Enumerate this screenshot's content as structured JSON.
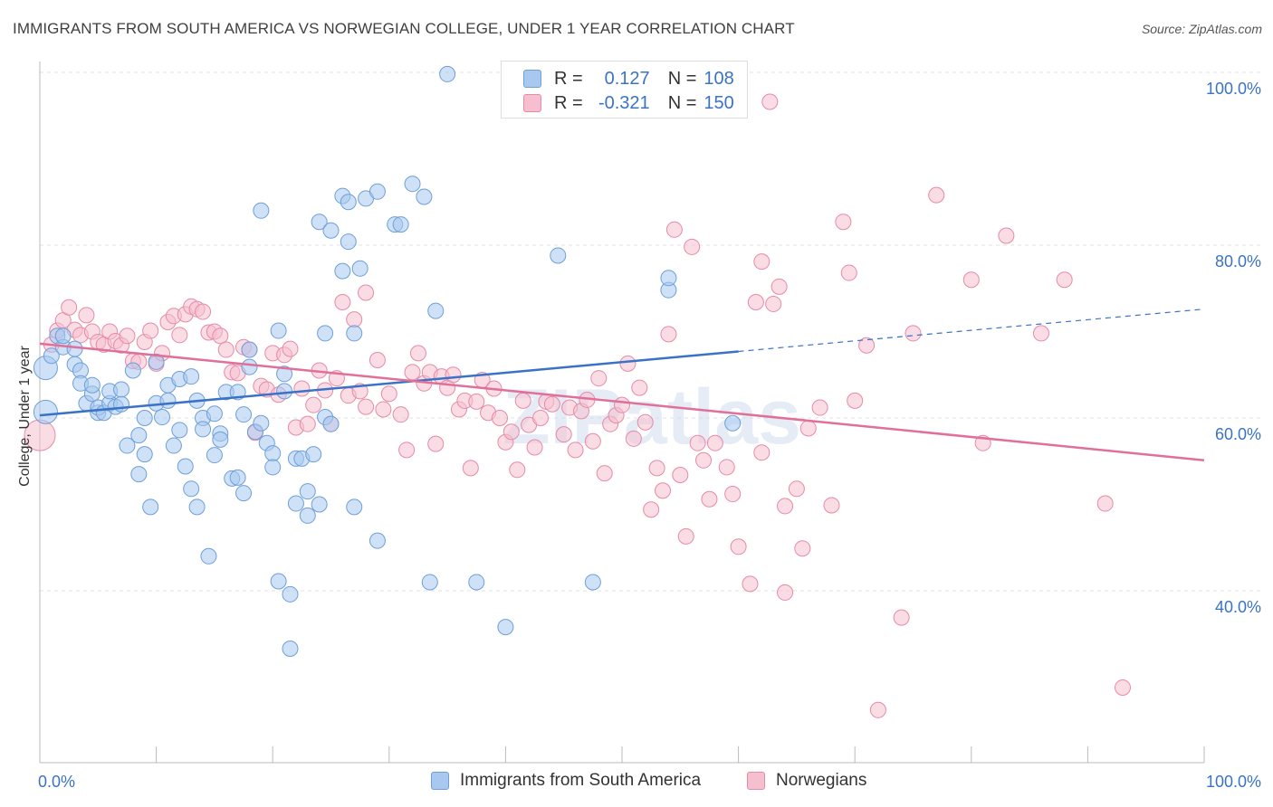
{
  "title": "IMMIGRANTS FROM SOUTH AMERICA VS NORWEGIAN COLLEGE, UNDER 1 YEAR CORRELATION CHART",
  "source": "Source: ZipAtlas.com",
  "watermark": "ZIPatlas",
  "colors": {
    "blue_fill": "#a8c8f0",
    "blue_stroke": "#6e9fd8",
    "blue_line": "#3a73c6",
    "pink_fill": "#f6bfd0",
    "pink_stroke": "#e68aa8",
    "pink_line": "#e0709a",
    "axis_tick_color": "#3a73c6",
    "grid": "#e0e0e0"
  },
  "legend_top": {
    "rows": [
      {
        "r_label": "R =",
        "r_value": "0.127",
        "n_label": "N =",
        "n_value": "108"
      },
      {
        "r_label": "R =",
        "r_value": "-0.321",
        "n_label": "N =",
        "n_value": "150"
      }
    ]
  },
  "legend_bottom": {
    "items": [
      "Immigrants from South America",
      "Norwegians"
    ]
  },
  "chart_data": {
    "type": "scatter",
    "title": "IMMIGRANTS FROM SOUTH AMERICA VS NORWEGIAN COLLEGE, UNDER 1 YEAR CORRELATION CHART",
    "xlabel": "",
    "ylabel": "College, Under 1 year",
    "xlim": [
      0,
      100
    ],
    "ylim": [
      20,
      102
    ],
    "x_tick_labels": [
      "0.0%",
      "100.0%"
    ],
    "y_tick_labels": [
      "100.0%",
      "80.0%",
      "60.0%",
      "40.0%"
    ],
    "y_ticks": [
      100,
      80,
      60,
      40
    ],
    "grid": true,
    "legend_position": "top-center",
    "series": [
      {
        "name": "Immigrants from South America",
        "R": 0.127,
        "N": 108,
        "trend": {
          "x0": 0,
          "y0": 60.3,
          "x1": 60,
          "y1": 67.7,
          "dashed_to_x": 100,
          "dashed_to_y": 72.6
        },
        "points": [
          [
            0.5,
            65.8
          ],
          [
            0.5,
            60.7
          ],
          [
            1,
            67.2
          ],
          [
            1.5,
            69.5
          ],
          [
            2,
            68.2
          ],
          [
            2,
            69.5
          ],
          [
            3,
            68
          ],
          [
            3,
            66.2
          ],
          [
            3.5,
            65.5
          ],
          [
            3.5,
            64
          ],
          [
            4,
            61.7
          ],
          [
            4.5,
            62.8
          ],
          [
            4.5,
            63.8
          ],
          [
            5,
            60.6
          ],
          [
            5,
            61.2
          ],
          [
            5.5,
            60.6
          ],
          [
            6,
            61.7
          ],
          [
            6,
            63.1
          ],
          [
            6.5,
            61.3
          ],
          [
            7,
            63.3
          ],
          [
            7,
            61.6
          ],
          [
            7.5,
            56.8
          ],
          [
            8,
            65.5
          ],
          [
            8.5,
            53.5
          ],
          [
            8.5,
            58
          ],
          [
            9,
            60
          ],
          [
            9,
            55.8
          ],
          [
            9.5,
            49.7
          ],
          [
            10,
            61.7
          ],
          [
            10,
            66.5
          ],
          [
            10.5,
            60.1
          ],
          [
            11,
            63.8
          ],
          [
            11,
            62
          ],
          [
            11.5,
            56.8
          ],
          [
            12,
            58.6
          ],
          [
            12,
            64.5
          ],
          [
            12.5,
            54.4
          ],
          [
            13,
            64.8
          ],
          [
            13,
            51.8
          ],
          [
            13.5,
            62
          ],
          [
            13.5,
            49.7
          ],
          [
            14,
            60
          ],
          [
            14,
            58.7
          ],
          [
            14.5,
            44
          ],
          [
            15,
            60.5
          ],
          [
            15,
            55.7
          ],
          [
            15.5,
            58.2
          ],
          [
            15.5,
            57.5
          ],
          [
            16,
            63
          ],
          [
            16.5,
            53
          ],
          [
            17,
            53.1
          ],
          [
            17,
            63
          ],
          [
            17.5,
            51.3
          ],
          [
            17.5,
            60.4
          ],
          [
            18,
            65.9
          ],
          [
            18,
            67.9
          ],
          [
            18.5,
            58.4
          ],
          [
            19,
            59.4
          ],
          [
            19,
            84
          ],
          [
            19.5,
            57.1
          ],
          [
            20,
            55.9
          ],
          [
            20,
            54.3
          ],
          [
            20.5,
            41.1
          ],
          [
            20.5,
            70.1
          ],
          [
            21,
            65.1
          ],
          [
            21,
            63.1
          ],
          [
            21.5,
            39.6
          ],
          [
            22,
            55.3
          ],
          [
            21.5,
            33.3
          ],
          [
            22,
            50.1
          ],
          [
            22.5,
            55.3
          ],
          [
            23,
            48.7
          ],
          [
            23,
            51.5
          ],
          [
            23.5,
            55.8
          ],
          [
            24,
            50
          ],
          [
            24,
            82.7
          ],
          [
            24.5,
            60.1
          ],
          [
            24.5,
            69.8
          ],
          [
            25,
            59.3
          ],
          [
            25,
            81.7
          ],
          [
            26,
            85.7
          ],
          [
            26,
            77
          ],
          [
            26.5,
            85
          ],
          [
            26.5,
            80.4
          ],
          [
            27,
            49.7
          ],
          [
            27,
            69.8
          ],
          [
            27.5,
            77.3
          ],
          [
            28,
            85.4
          ],
          [
            29,
            45.8
          ],
          [
            29,
            86.2
          ],
          [
            30.5,
            82.4
          ],
          [
            31,
            82.4
          ],
          [
            32,
            87.1
          ],
          [
            33,
            85.6
          ],
          [
            33.5,
            41
          ],
          [
            34,
            72.4
          ],
          [
            35,
            99.8
          ],
          [
            37.5,
            41
          ],
          [
            40,
            35.8
          ],
          [
            44.5,
            78.8
          ],
          [
            47.5,
            41
          ],
          [
            54,
            74.8
          ],
          [
            54,
            76.2
          ],
          [
            59.5,
            59.4
          ]
        ]
      },
      {
        "name": "Norwegians",
        "R": -0.321,
        "N": 150,
        "trend": {
          "x0": 0,
          "y0": 68.6,
          "x1": 100,
          "y1": 55.1
        },
        "points": [
          [
            0,
            58
          ],
          [
            1,
            68.5
          ],
          [
            1.5,
            70.1
          ],
          [
            2,
            71.3
          ],
          [
            2.5,
            72.8
          ],
          [
            3,
            70.2
          ],
          [
            3.5,
            69.6
          ],
          [
            4,
            71.9
          ],
          [
            4.5,
            70
          ],
          [
            5,
            68.8
          ],
          [
            5.5,
            68.5
          ],
          [
            6,
            70
          ],
          [
            6.5,
            68.9
          ],
          [
            7,
            68.4
          ],
          [
            7.5,
            69.5
          ],
          [
            8,
            66.6
          ],
          [
            8.5,
            66.5
          ],
          [
            9,
            68.8
          ],
          [
            9.5,
            70.1
          ],
          [
            10,
            66.3
          ],
          [
            10.5,
            67.5
          ],
          [
            11,
            71.1
          ],
          [
            11.5,
            71.8
          ],
          [
            12,
            69.6
          ],
          [
            12.5,
            72
          ],
          [
            13,
            72.9
          ],
          [
            13.5,
            72.6
          ],
          [
            14,
            72.3
          ],
          [
            14.5,
            69.9
          ],
          [
            15,
            70
          ],
          [
            15.5,
            69.5
          ],
          [
            16,
            67.9
          ],
          [
            16.5,
            65.3
          ],
          [
            17,
            65.2
          ],
          [
            17.5,
            68.2
          ],
          [
            18,
            67.9
          ],
          [
            18.5,
            58.3
          ],
          [
            19,
            63.7
          ],
          [
            19.5,
            63.3
          ],
          [
            20,
            67.5
          ],
          [
            20.5,
            62.7
          ],
          [
            21,
            67.3
          ],
          [
            21.5,
            68
          ],
          [
            22,
            58.9
          ],
          [
            22.5,
            63.4
          ],
          [
            23,
            59.3
          ],
          [
            23.5,
            61.5
          ],
          [
            24,
            65.5
          ],
          [
            24.5,
            63.2
          ],
          [
            25,
            59.3
          ],
          [
            25.5,
            64.6
          ],
          [
            26,
            73.4
          ],
          [
            26.5,
            62.6
          ],
          [
            27,
            71.4
          ],
          [
            27.5,
            63.1
          ],
          [
            28,
            61.3
          ],
          [
            28,
            74.5
          ],
          [
            29,
            66.7
          ],
          [
            29.5,
            61
          ],
          [
            30,
            62.8
          ],
          [
            31,
            60.4
          ],
          [
            31.5,
            56.3
          ],
          [
            32,
            65.3
          ],
          [
            32.5,
            67.5
          ],
          [
            33,
            64
          ],
          [
            33.5,
            65.3
          ],
          [
            34,
            57
          ],
          [
            34.5,
            64.8
          ],
          [
            35,
            63.5
          ],
          [
            35.5,
            65
          ],
          [
            36,
            61
          ],
          [
            36.5,
            62
          ],
          [
            37,
            54.2
          ],
          [
            37.5,
            61.9
          ],
          [
            38,
            64.4
          ],
          [
            38.5,
            60.6
          ],
          [
            39,
            63.4
          ],
          [
            39.5,
            60
          ],
          [
            40,
            57.2
          ],
          [
            40.5,
            58.4
          ],
          [
            41,
            54
          ],
          [
            41.5,
            62
          ],
          [
            42,
            59.2
          ],
          [
            42.5,
            56.6
          ],
          [
            43,
            60
          ],
          [
            43.5,
            61.9
          ],
          [
            44,
            61.6
          ],
          [
            45,
            58.1
          ],
          [
            45.5,
            61.2
          ],
          [
            46,
            56.3
          ],
          [
            46.5,
            60.8
          ],
          [
            47,
            62.1
          ],
          [
            47.5,
            57.3
          ],
          [
            48,
            64.6
          ],
          [
            48.5,
            53.6
          ],
          [
            49,
            59.3
          ],
          [
            49.5,
            60.3
          ],
          [
            50,
            61.5
          ],
          [
            50.5,
            66.3
          ],
          [
            51,
            57.6
          ],
          [
            51.5,
            63.5
          ],
          [
            52,
            59.5
          ],
          [
            52.5,
            49.4
          ],
          [
            53,
            54.2
          ],
          [
            53.5,
            51.6
          ],
          [
            54,
            69.7
          ],
          [
            54.5,
            81.8
          ],
          [
            55,
            53.4
          ],
          [
            55.5,
            46.3
          ],
          [
            56,
            79.8
          ],
          [
            56.5,
            57.1
          ],
          [
            57,
            55.1
          ],
          [
            57.5,
            50.6
          ],
          [
            58,
            57.1
          ],
          [
            59,
            54.3
          ],
          [
            59.5,
            51.2
          ],
          [
            60,
            45.1
          ],
          [
            61,
            40.8
          ],
          [
            61.5,
            73.4
          ],
          [
            62,
            78.1
          ],
          [
            62,
            56
          ],
          [
            63,
            73.2
          ],
          [
            63.5,
            75.2
          ],
          [
            64,
            49.8
          ],
          [
            64,
            39.8
          ],
          [
            65,
            51.8
          ],
          [
            65.5,
            44.9
          ],
          [
            66,
            58.8
          ],
          [
            67,
            61.2
          ],
          [
            68,
            49.9
          ],
          [
            69,
            82.7
          ],
          [
            69.5,
            76.8
          ],
          [
            70,
            62
          ],
          [
            71,
            68.4
          ],
          [
            72,
            26.2
          ],
          [
            74,
            36.9
          ],
          [
            75,
            69.8
          ],
          [
            77,
            85.8
          ],
          [
            80,
            76
          ],
          [
            81,
            57.1
          ],
          [
            83,
            81.1
          ],
          [
            86,
            69.8
          ],
          [
            88,
            76
          ],
          [
            91.5,
            50.1
          ],
          [
            93,
            28.8
          ],
          [
            62.7,
            96.6
          ]
        ]
      }
    ]
  }
}
